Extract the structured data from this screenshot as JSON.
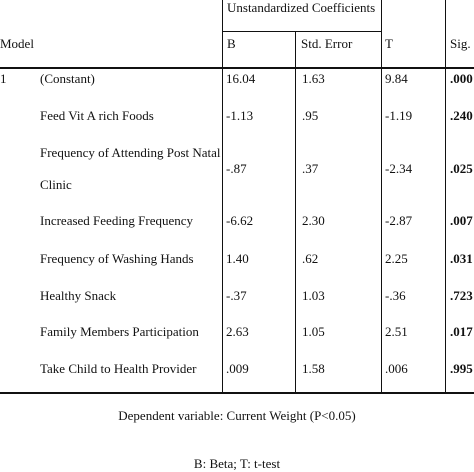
{
  "table": {
    "group_header": "Unstandardized Coefficients",
    "col_model": "Model",
    "col_b": "B",
    "col_se": "Std. Error",
    "col_t": "T",
    "col_sig": "Sig.",
    "model_number": "1",
    "rows": [
      {
        "label": "(Constant)",
        "b": "16.04",
        "se": "1.63",
        "t": "9.84",
        "sig": ".000"
      },
      {
        "label": "Feed Vit A rich Foods",
        "b": "-1.13",
        "se": ".95",
        "t": "-1.19",
        "sig": ".240"
      },
      {
        "label": "Frequency of Attending Post Natal Clinic",
        "b": "-.87",
        "se": ".37",
        "t": "-2.34",
        "sig": ".025"
      },
      {
        "label": "Increased Feeding Frequency",
        "b": "-6.62",
        "se": "2.30",
        "t": "-2.87",
        "sig": ".007"
      },
      {
        "label": "Frequency of Washing Hands",
        "b": "1.40",
        "se": ".62",
        "t": "2.25",
        "sig": ".031"
      },
      {
        "label": "Healthy Snack",
        "b": "-.37",
        "se": "1.03",
        "t": "-.36",
        "sig": ".723"
      },
      {
        "label": "Family Members Participation",
        "b": "2.63",
        "se": "1.05",
        "t": "2.51",
        "sig": ".017"
      },
      {
        "label": "Take Child to Health Provider",
        "b": ".009",
        "se": "1.58",
        "t": ".006",
        "sig": ".995"
      }
    ]
  },
  "notes": {
    "dependent": "Dependent variable: Current Weight (P<0.05)",
    "legend": "B: Beta; T: t-test"
  }
}
